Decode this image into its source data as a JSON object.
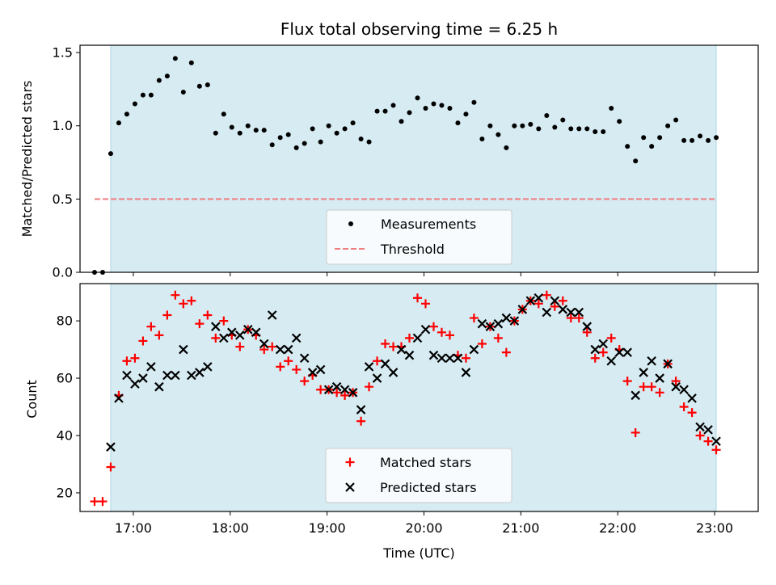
{
  "title": "Flux total observing time = 6.25 h",
  "colors": {
    "shade": "#add8e6",
    "measurement": "#000000",
    "threshold": "#f08080",
    "matched": "#ff0000",
    "predicted": "#000000"
  },
  "chart_data": [
    {
      "type": "scatter",
      "ylabel": "Matched/Predicted stars",
      "xlabel": "",
      "xlim": [
        "16:27",
        "23:27"
      ],
      "ylim": [
        0,
        1.55
      ],
      "yticks": [
        "0.0",
        "0.5",
        "1.0",
        "1.5"
      ],
      "shaded_span": [
        "16:46",
        "23:01"
      ],
      "threshold": {
        "name": "Threshold",
        "value": 0.5,
        "x": [
          "16:36",
          "23:01"
        ]
      },
      "legend": {
        "position": "lower center",
        "entries": [
          "Measurements",
          "Threshold"
        ]
      },
      "series": [
        {
          "name": "Measurements",
          "x": [
            "16:36",
            "16:41",
            "16:46",
            "16:51",
            "16:56",
            "17:01",
            "17:06",
            "17:11",
            "17:16",
            "17:21",
            "17:26",
            "17:31",
            "17:36",
            "17:41",
            "17:46",
            "17:51",
            "17:56",
            "18:01",
            "18:06",
            "18:11",
            "18:16",
            "18:21",
            "18:26",
            "18:31",
            "18:36",
            "18:41",
            "18:46",
            "18:51",
            "18:56",
            "19:01",
            "19:06",
            "19:11",
            "19:16",
            "19:21",
            "19:26",
            "19:31",
            "19:36",
            "19:41",
            "19:46",
            "19:51",
            "19:56",
            "20:01",
            "20:06",
            "20:11",
            "20:16",
            "20:21",
            "20:26",
            "20:31",
            "20:36",
            "20:41",
            "20:46",
            "20:51",
            "20:56",
            "21:01",
            "21:06",
            "21:11",
            "21:16",
            "21:21",
            "21:26",
            "21:31",
            "21:36",
            "21:41",
            "21:46",
            "21:51",
            "21:56",
            "22:01",
            "22:06",
            "22:11",
            "22:16",
            "22:21",
            "22:26",
            "22:31",
            "22:36",
            "22:41",
            "22:46",
            "22:51",
            "22:56",
            "23:01"
          ],
          "y": [
            0.0,
            0.0,
            0.81,
            1.02,
            1.08,
            1.15,
            1.21,
            1.21,
            1.31,
            1.34,
            1.46,
            1.23,
            1.43,
            1.27,
            1.28,
            0.95,
            1.08,
            0.99,
            0.95,
            1.0,
            0.97,
            0.97,
            0.87,
            0.92,
            0.94,
            0.85,
            0.88,
            0.98,
            0.89,
            1.0,
            0.95,
            0.98,
            1.02,
            0.91,
            0.89,
            1.1,
            1.1,
            1.14,
            1.03,
            1.09,
            1.19,
            1.12,
            1.15,
            1.14,
            1.12,
            1.02,
            1.08,
            1.16,
            0.91,
            1.0,
            0.94,
            0.85,
            1.0,
            1.0,
            1.01,
            0.98,
            1.07,
            0.99,
            1.04,
            0.98,
            0.98,
            0.98,
            0.96,
            0.96,
            1.12,
            1.03,
            0.86,
            0.76,
            0.92,
            0.86,
            0.92,
            1.0,
            1.04,
            0.9,
            0.9,
            0.93,
            0.9,
            0.92
          ]
        }
      ]
    },
    {
      "type": "scatter",
      "ylabel": "Count",
      "xlabel": "Time (UTC)",
      "xlim": [
        "16:27",
        "23:27"
      ],
      "ylim": [
        13.5,
        93
      ],
      "yticks": [
        "20",
        "40",
        "60",
        "80"
      ],
      "xticks": [
        "17:00",
        "18:00",
        "19:00",
        "20:00",
        "21:00",
        "22:00",
        "23:00"
      ],
      "shaded_span": [
        "16:46",
        "23:01"
      ],
      "legend": {
        "position": "lower center",
        "entries": [
          "Matched stars",
          "Predicted stars"
        ]
      },
      "x": [
        "16:36",
        "16:41",
        "16:46",
        "16:51",
        "16:56",
        "17:01",
        "17:06",
        "17:11",
        "17:16",
        "17:21",
        "17:26",
        "17:31",
        "17:36",
        "17:41",
        "17:46",
        "17:51",
        "17:56",
        "18:01",
        "18:06",
        "18:11",
        "18:16",
        "18:21",
        "18:26",
        "18:31",
        "18:36",
        "18:41",
        "18:46",
        "18:51",
        "18:56",
        "19:01",
        "19:06",
        "19:11",
        "19:16",
        "19:21",
        "19:26",
        "19:31",
        "19:36",
        "19:41",
        "19:46",
        "19:51",
        "19:56",
        "20:01",
        "20:06",
        "20:11",
        "20:16",
        "20:21",
        "20:26",
        "20:31",
        "20:36",
        "20:41",
        "20:46",
        "20:51",
        "20:56",
        "21:01",
        "21:06",
        "21:11",
        "21:16",
        "21:21",
        "21:26",
        "21:31",
        "21:36",
        "21:41",
        "21:46",
        "21:51",
        "21:56",
        "22:01",
        "22:06",
        "22:11",
        "22:16",
        "22:21",
        "22:26",
        "22:31",
        "22:36",
        "22:41",
        "22:46",
        "22:51",
        "22:56",
        "23:01"
      ],
      "series": [
        {
          "name": "Matched stars",
          "y": [
            17,
            17,
            29,
            54,
            66,
            67,
            73,
            78,
            75,
            82,
            89,
            86,
            87,
            79,
            82,
            74,
            80,
            75,
            71,
            77,
            75,
            70,
            71,
            64,
            66,
            63,
            59,
            61,
            56,
            56,
            55,
            54,
            55,
            45,
            57,
            66,
            72,
            71,
            71,
            74,
            88,
            86,
            78,
            76,
            75,
            68,
            67,
            81,
            72,
            78,
            74,
            69,
            80,
            84,
            87,
            86,
            89,
            85,
            87,
            81,
            81,
            76,
            67,
            69,
            74,
            70,
            59,
            41,
            57,
            57,
            55,
            65,
            59,
            50,
            48,
            40,
            38,
            35
          ]
        },
        {
          "name": "Predicted stars",
          "y": [
            null,
            null,
            36,
            53,
            61,
            58,
            60,
            64,
            57,
            61,
            61,
            70,
            61,
            62,
            64,
            78,
            74,
            76,
            75,
            77,
            76,
            72,
            82,
            70,
            70,
            74,
            67,
            62,
            63,
            56,
            57,
            56,
            55,
            49,
            64,
            60,
            65,
            62,
            70,
            68,
            74,
            77,
            68,
            67,
            67,
            67,
            62,
            70,
            79,
            78,
            79,
            81,
            80,
            84,
            87,
            88,
            83,
            87,
            84,
            83,
            83,
            78,
            70,
            72,
            66,
            69,
            69,
            54,
            62,
            66,
            60,
            65,
            57,
            56,
            53,
            43,
            42,
            38
          ]
        }
      ]
    }
  ]
}
